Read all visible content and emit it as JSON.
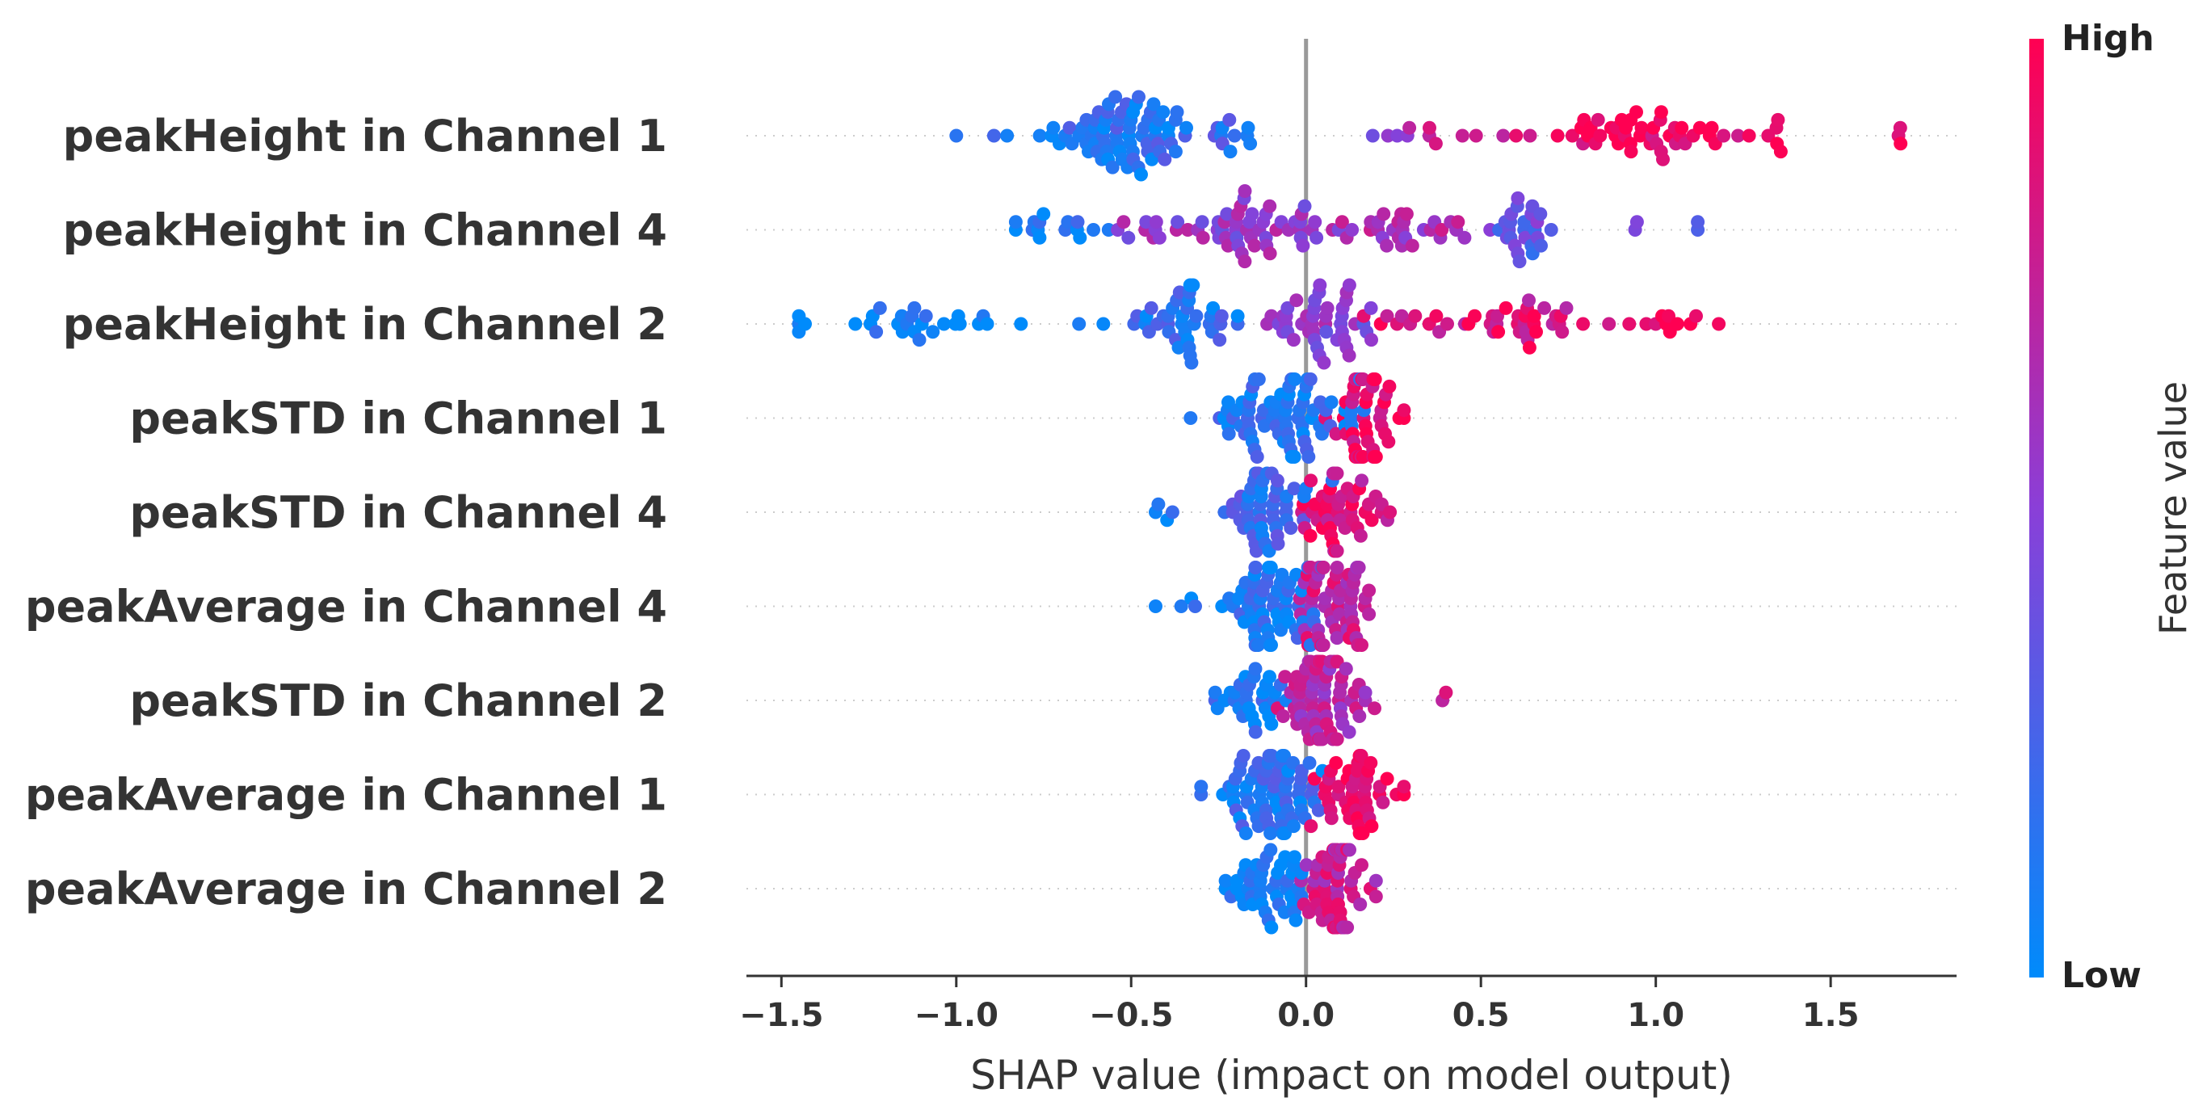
{
  "chart_data": {
    "type": "scatter",
    "subtype": "shap-beeswarm",
    "title": "",
    "xlabel": "SHAP value (impact on model output)",
    "xlim": [
      -1.6,
      1.86
    ],
    "xticks": [
      -1.5,
      -1.0,
      -0.5,
      0.0,
      0.5,
      1.0,
      1.5
    ],
    "xtick_labels": [
      "−1.5",
      "−1.0",
      "−0.5",
      "0.0",
      "0.5",
      "1.0",
      "1.5"
    ],
    "zero_line": true,
    "colorbar": {
      "label": "Feature value",
      "high_label": "High",
      "low_label": "Low",
      "low_color": "#008bfb",
      "high_color": "#ff0052"
    },
    "features": [
      {
        "name": "peakHeight in Channel 1",
        "min": -1.0,
        "max": 1.7,
        "clusters": [
          {
            "center": -0.55,
            "width": 0.26,
            "n": 75,
            "value": 0.15
          },
          {
            "center": -0.2,
            "width": 0.1,
            "n": 10,
            "value": 0.2
          },
          {
            "center": 0.22,
            "width": 0.12,
            "n": 5,
            "value": 0.55
          },
          {
            "center": 0.5,
            "width": 0.2,
            "n": 8,
            "value": 0.75
          },
          {
            "center": 0.95,
            "width": 0.27,
            "n": 45,
            "value": 0.95
          },
          {
            "center": 1.35,
            "width": 0.06,
            "n": 5,
            "value": 0.98
          },
          {
            "center": 1.7,
            "width": 0.01,
            "n": 2,
            "value": 1.0
          }
        ]
      },
      {
        "name": "peakHeight in Channel 4",
        "min": -0.83,
        "max": 1.12,
        "clusters": [
          {
            "center": -0.68,
            "width": 0.14,
            "n": 14,
            "value": 0.1
          },
          {
            "center": -0.2,
            "width": 0.35,
            "n": 60,
            "value": 0.55
          },
          {
            "center": 0.3,
            "width": 0.22,
            "n": 30,
            "value": 0.65
          },
          {
            "center": 0.62,
            "width": 0.08,
            "n": 25,
            "value": 0.35
          },
          {
            "center": 0.92,
            "width": 0.05,
            "n": 2,
            "value": 0.35
          },
          {
            "center": 1.12,
            "width": 0.01,
            "n": 1,
            "value": 0.3
          }
        ]
      },
      {
        "name": "peakHeight in Channel 2",
        "min": -1.45,
        "max": 1.18,
        "clusters": [
          {
            "center": -1.1,
            "width": 0.34,
            "n": 28,
            "value": 0.03
          },
          {
            "center": -0.35,
            "width": 0.18,
            "n": 40,
            "value": 0.15
          },
          {
            "center": 0.05,
            "width": 0.15,
            "n": 45,
            "value": 0.5
          },
          {
            "center": 0.55,
            "width": 0.38,
            "n": 45,
            "value": 0.85
          },
          {
            "center": 1.05,
            "width": 0.13,
            "n": 8,
            "value": 0.95
          }
        ]
      },
      {
        "name": "peakSTD in Channel 1",
        "min": -0.33,
        "max": 0.28,
        "clusters": [
          {
            "center": -0.08,
            "width": 0.2,
            "n": 75,
            "value": 0.12
          },
          {
            "center": 0.16,
            "width": 0.1,
            "n": 45,
            "value": 0.92
          }
        ]
      },
      {
        "name": "peakSTD in Channel 4",
        "min": -0.43,
        "max": 0.24,
        "clusters": [
          {
            "center": -0.38,
            "width": 0.06,
            "n": 3,
            "value": 0.05
          },
          {
            "center": -0.1,
            "width": 0.14,
            "n": 50,
            "value": 0.2
          },
          {
            "center": 0.1,
            "width": 0.12,
            "n": 45,
            "value": 0.85
          }
        ]
      },
      {
        "name": "peakAverage in Channel 4",
        "min": -0.43,
        "max": 0.18,
        "clusters": [
          {
            "center": -0.35,
            "width": 0.07,
            "n": 3,
            "value": 0.05
          },
          {
            "center": -0.1,
            "width": 0.12,
            "n": 60,
            "value": 0.1
          },
          {
            "center": 0.08,
            "width": 0.1,
            "n": 60,
            "value": 0.75
          }
        ]
      },
      {
        "name": "peakSTD in Channel 2",
        "min": -0.26,
        "max": 0.4,
        "clusters": [
          {
            "center": -0.16,
            "width": 0.1,
            "n": 30,
            "value": 0.1
          },
          {
            "center": 0.06,
            "width": 0.12,
            "n": 70,
            "value": 0.7
          },
          {
            "center": 0.39,
            "width": 0.01,
            "n": 1,
            "value": 0.85
          }
        ]
      },
      {
        "name": "peakAverage in Channel 1",
        "min": -0.3,
        "max": 0.28,
        "clusters": [
          {
            "center": -0.1,
            "width": 0.18,
            "n": 70,
            "value": 0.15
          },
          {
            "center": 0.14,
            "width": 0.13,
            "n": 45,
            "value": 0.9
          }
        ]
      },
      {
        "name": "peakAverage in Channel 2",
        "min": -0.23,
        "max": 0.2,
        "clusters": [
          {
            "center": -0.1,
            "width": 0.12,
            "n": 45,
            "value": 0.05
          },
          {
            "center": 0.09,
            "width": 0.1,
            "n": 60,
            "value": 0.75
          }
        ]
      }
    ]
  }
}
